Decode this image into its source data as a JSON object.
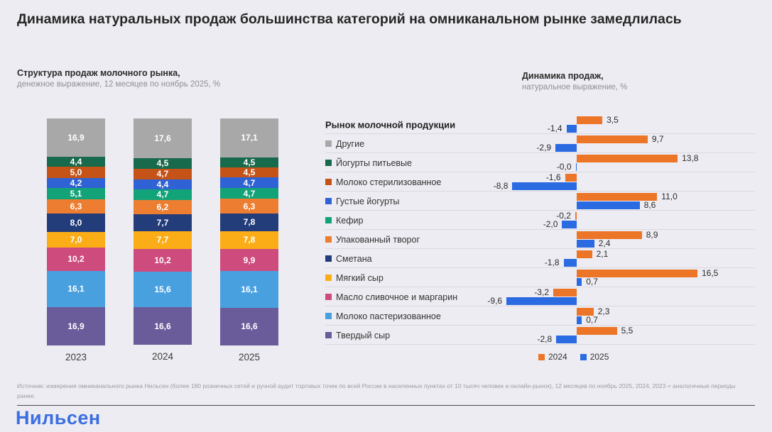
{
  "title": "Динамика натуральных продаж большинства категорий на омниканальном рынке замедлилась",
  "left_chart": {
    "heading": "Структура продаж молочного рынка,",
    "subheading": "денежное выражение, 12 месяцев по ноябрь 2025, %"
  },
  "right_chart": {
    "heading": "Динамика продаж,",
    "subheading": "натуральное выражение, %",
    "legend": [
      {
        "label": "2024",
        "color": "#ED7527"
      },
      {
        "label": "2025",
        "color": "#2B6BE2"
      }
    ]
  },
  "chart_data": [
    {
      "type": "bar",
      "stacked": true,
      "title": "Структура продаж молочного рынка, денежное выражение, 12 месяцев по ноябрь 2025, %",
      "categories": [
        "2023",
        "2024",
        "2025"
      ],
      "ylim": [
        0,
        100
      ],
      "series": [
        {
          "name": "Другие",
          "color": "#A8A8A8",
          "values": [
            16.9,
            17.6,
            17.1
          ],
          "labels": [
            "16,9",
            "17,6",
            "17,1"
          ]
        },
        {
          "name": "Йогурты питьевые",
          "color": "#186A4D",
          "values": [
            4.4,
            4.5,
            4.5
          ],
          "labels": [
            "4,4",
            "4,5",
            "4,5"
          ]
        },
        {
          "name": "Молоко стерилизованное",
          "color": "#C55318",
          "values": [
            5.0,
            4.7,
            4.5
          ],
          "labels": [
            "5,0",
            "4,7",
            "4,5"
          ]
        },
        {
          "name": "Густые йогурты",
          "color": "#2F62D4",
          "values": [
            4.2,
            4.4,
            4.7
          ],
          "labels": [
            "4,2",
            "4,4",
            "4,7"
          ]
        },
        {
          "name": "Кефир",
          "color": "#12A478",
          "values": [
            5.1,
            4.7,
            4.7
          ],
          "labels": [
            "5,1",
            "4,7",
            "4,7"
          ]
        },
        {
          "name": "Упакованный творог",
          "color": "#ED7D31",
          "values": [
            6.3,
            6.2,
            6.3
          ],
          "labels": [
            "6,3",
            "6,2",
            "6,3"
          ]
        },
        {
          "name": "Сметана",
          "color": "#233D7B",
          "values": [
            8.0,
            7.7,
            7.8
          ],
          "labels": [
            "8,0",
            "7,7",
            "7,8"
          ]
        },
        {
          "name": "Мягкий сыр",
          "color": "#FBAD18",
          "values": [
            7.0,
            7.7,
            7.8
          ],
          "labels": [
            "7,0",
            "7,7",
            "7,8"
          ]
        },
        {
          "name": "Масло сливочное и маргарин",
          "color": "#CE4B7D",
          "values": [
            10.2,
            10.2,
            9.9
          ],
          "labels": [
            "10,2",
            "10,2",
            "9,9"
          ]
        },
        {
          "name": "Молоко пастеризованное",
          "color": "#49A0DF",
          "values": [
            16.1,
            15.6,
            16.1
          ],
          "labels": [
            "16,1",
            "15,6",
            "16,1"
          ]
        },
        {
          "name": "Твердый сыр",
          "color": "#6A5B9B",
          "values": [
            16.9,
            16.6,
            16.6
          ],
          "labels": [
            "16,9",
            "16,6",
            "16,6"
          ]
        }
      ]
    },
    {
      "type": "bar",
      "orientation": "horizontal",
      "title": "Динамика продаж, натуральное выражение, %",
      "categories": [
        "Рынок молочной продукции",
        "Другие",
        "Йогурты питьевые",
        "Молоко стерилизованное",
        "Густые йогурты",
        "Кефир",
        "Упакованный творог",
        "Сметана",
        "Мягкий сыр",
        "Масло сливочное и маргарин",
        "Молоко пастеризованное",
        "Твердый сыр"
      ],
      "category_colors": [
        null,
        "#A8A8A8",
        "#186A4D",
        "#C55318",
        "#2F62D4",
        "#12A478",
        "#ED7D31",
        "#233D7B",
        "#FBAD18",
        "#CE4B7D",
        "#49A0DF",
        "#6A5B9B"
      ],
      "xlim": [
        -10,
        17
      ],
      "series": [
        {
          "name": "2024",
          "color": "#ED7527",
          "values": [
            3.5,
            9.7,
            13.8,
            -1.6,
            11.0,
            -0.2,
            8.9,
            2.1,
            16.5,
            -3.2,
            2.3,
            5.5
          ],
          "labels": [
            "3,5",
            "9,7",
            "13,8",
            "-1,6",
            "11,0",
            "-0,2",
            "8,9",
            "2,1",
            "16,5",
            "-3,2",
            "2,3",
            "5,5"
          ]
        },
        {
          "name": "2025",
          "color": "#2B6BE2",
          "values": [
            -1.4,
            -2.9,
            -0.0,
            -8.8,
            8.6,
            -2.0,
            2.4,
            -1.8,
            0.7,
            -9.6,
            0.7,
            -2.8
          ],
          "labels": [
            "-1,4",
            "-2,9",
            "-0,0",
            "-8,8",
            "8,6",
            "-2,0",
            "2,4",
            "-1,8",
            "0,7",
            "-9,6",
            "0,7",
            "-2,8"
          ]
        }
      ]
    }
  ],
  "footer": {
    "source": "Источник: измерения омниканального рынка Нильсен (более 180 розничных сетей и ручной аудит торговых точек по всей России в населенных пунктах от 10 тысяч человек и онлайн-рынок), 12 месяцев по ноябрь 2025, 2024, 2023 = аналогичные периоды ранее.",
    "logo": "Нильсен"
  }
}
